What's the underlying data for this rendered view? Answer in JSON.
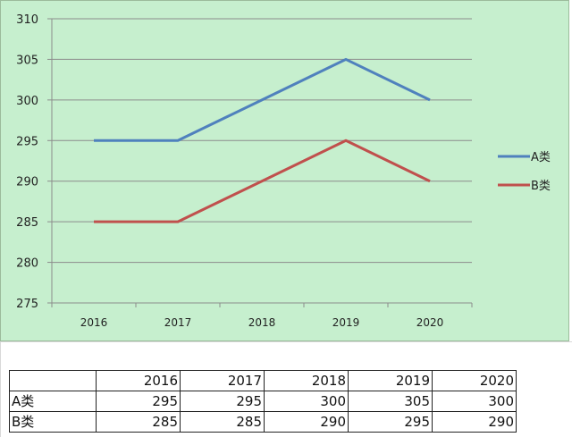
{
  "chart_data": {
    "type": "line",
    "categories": [
      "2016",
      "2017",
      "2018",
      "2019",
      "2020"
    ],
    "series": [
      {
        "name": "A类",
        "values": [
          295,
          295,
          300,
          305,
          300
        ],
        "color": "#4f81bd"
      },
      {
        "name": "B类",
        "values": [
          285,
          285,
          290,
          295,
          290
        ],
        "color": "#c0504d"
      }
    ],
    "ylim": [
      275,
      310
    ],
    "yticks": [
      275,
      280,
      285,
      290,
      295,
      300,
      305,
      310
    ],
    "grid": "horizontal",
    "legend_position": "right",
    "background": "#c6efce"
  },
  "table": {
    "header": [
      "",
      "2016",
      "2017",
      "2018",
      "2019",
      "2020"
    ],
    "rows": [
      {
        "label": "A类",
        "values": [
          "295",
          "295",
          "300",
          "305",
          "300"
        ]
      },
      {
        "label": "B类",
        "values": [
          "285",
          "285",
          "290",
          "295",
          "290"
        ]
      }
    ]
  }
}
